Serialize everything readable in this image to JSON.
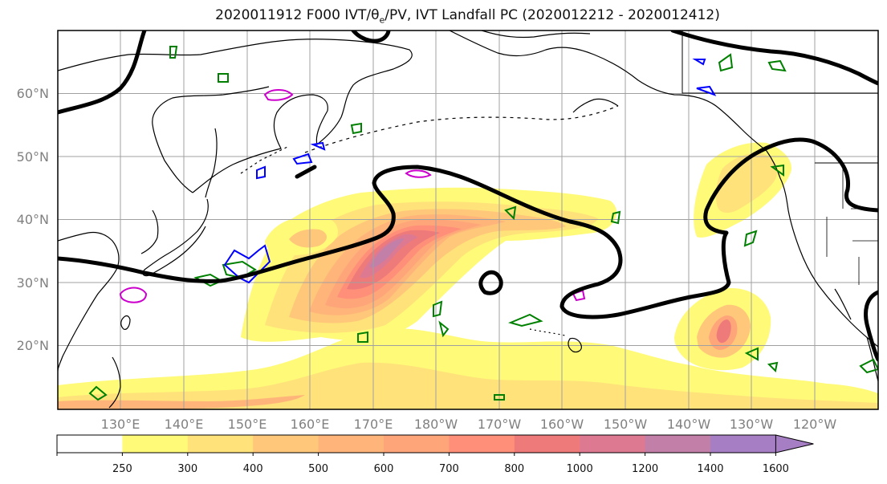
{
  "title": "2020011912 F000 IVT/θe/PV, IVT Landfall PC (2020012212 - 2020012412)",
  "map": {
    "lat_labels": [
      "60°N",
      "50°N",
      "40°N",
      "30°N",
      "20°N"
    ],
    "lon_labels": [
      "130°E",
      "140°E",
      "150°E",
      "160°E",
      "170°E",
      "180°W",
      "170°W",
      "160°W",
      "150°W",
      "140°W",
      "130°W",
      "120°W"
    ],
    "land_fill": "#ffffff",
    "coastline_color": "#000000",
    "grid_color": "#a0a0a0"
  },
  "colorbar": {
    "tick_labels": [
      "250",
      "300",
      "400",
      "500",
      "600",
      "700",
      "800",
      "1000",
      "1200",
      "1400",
      "1600"
    ],
    "colors": [
      "#ffffff",
      "#fffa78",
      "#ffe27a",
      "#ffc77a",
      "#ffb57a",
      "#ffa57a",
      "#ff8f78",
      "#ee7a7a",
      "#dd7a92",
      "#c27fa8",
      "#a67ec4"
    ]
  },
  "legend_colors": {
    "ivt_landfall_pc": "#000000",
    "theta_e": "#008000",
    "pv_blue": "#0000ff",
    "pv_magenta": "#cc00cc"
  }
}
